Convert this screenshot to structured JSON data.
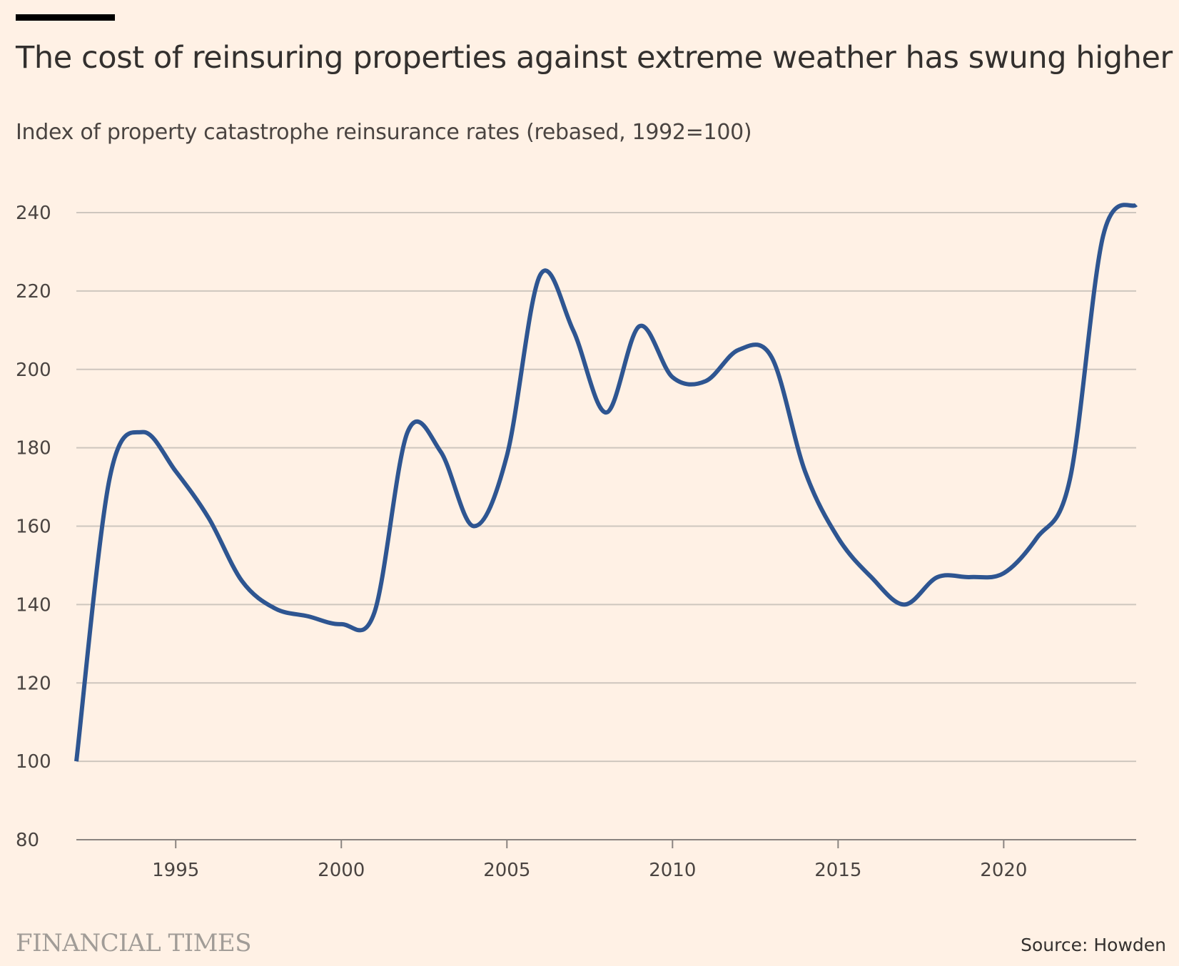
{
  "chart_data": {
    "type": "line",
    "title": "The cost of reinsuring properties against extreme weather has swung higher",
    "subtitle": "Index of property catastrophe reinsurance rates (rebased, 1992=100)",
    "xlabel": "",
    "ylabel": "",
    "x": [
      1992,
      1993,
      1994,
      1995,
      1996,
      1997,
      1998,
      1999,
      2000,
      2001,
      2002,
      2003,
      2004,
      2005,
      2006,
      2007,
      2008,
      2009,
      2010,
      2011,
      2012,
      2013,
      2014,
      2015,
      2016,
      2017,
      2018,
      2019,
      2020,
      2021,
      2022,
      2023,
      2024
    ],
    "series": [
      {
        "values": [
          100,
          172,
          184,
          174,
          162,
          146,
          139,
          137,
          135,
          138,
          184,
          179,
          160,
          178,
          224,
          210,
          189,
          211,
          198,
          197,
          205,
          203,
          174,
          157,
          147,
          140,
          147,
          147,
          148,
          157,
          172,
          234,
          242
        ],
        "color": "#2e5591"
      }
    ],
    "xticks": [
      1995,
      2000,
      2005,
      2010,
      2015,
      2020
    ],
    "yticks": [
      80,
      100,
      120,
      140,
      160,
      180,
      200,
      220,
      240
    ],
    "xlim": [
      1992,
      2024
    ],
    "ylim": [
      80,
      242
    ],
    "grid": true,
    "legend": "none"
  },
  "branding": {
    "publisher": "FINANCIAL TIMES",
    "source": "Source: Howden"
  },
  "colors": {
    "background": "#fff1e5",
    "line": "#2e5591",
    "grid": "#cec6be",
    "axis": "#8a8480",
    "accent_bar": "#000000"
  }
}
